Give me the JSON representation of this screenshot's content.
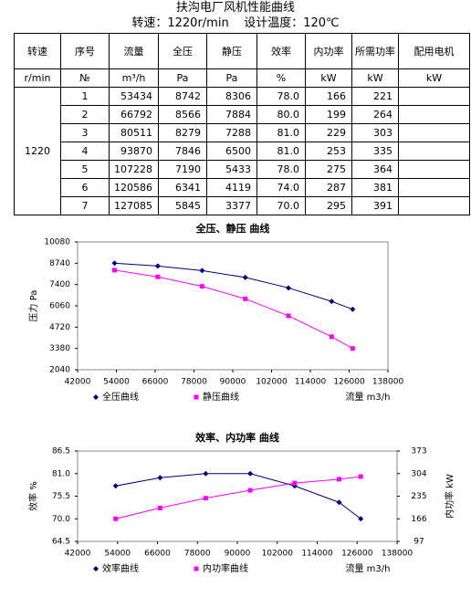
{
  "header": {
    "title": "扶沟电厂风机性能曲线",
    "speed": "转速：1220r/min",
    "temperature": "设计温度：120℃"
  },
  "table": {
    "header": [
      "转速",
      "序号",
      "流量",
      "全压",
      "静压",
      "效率",
      "内功率",
      "所需功率",
      "配用电机"
    ],
    "units": [
      "r/min",
      "№",
      "m³/h",
      "Pa",
      "Pa",
      "%",
      "kW",
      "kW",
      "kW"
    ],
    "speed": "1220",
    "rows": [
      [
        "1",
        "53434",
        "8742",
        "8306",
        "78.0",
        "166",
        "221"
      ],
      [
        "2",
        "66792",
        "8566",
        "7884",
        "80.0",
        "199",
        "264"
      ],
      [
        "3",
        "80511",
        "8279",
        "7288",
        "81.0",
        "229",
        "303"
      ],
      [
        "4",
        "93870",
        "7846",
        "6500",
        "81.0",
        "253",
        "335"
      ],
      [
        "5",
        "107228",
        "7190",
        "5433",
        "78.0",
        "275",
        "364"
      ],
      [
        "6",
        "120586",
        "6341",
        "4119",
        "74.0",
        "287",
        "381"
      ],
      [
        "7",
        "127085",
        "5845",
        "3377",
        "70.0",
        "295",
        "391"
      ]
    ]
  },
  "chart_data": [
    {
      "type": "line",
      "title": "全压、静压 曲线",
      "x_label": "流量 m3/h",
      "y_label": "压力 Pa",
      "x": [
        53434,
        66792,
        80511,
        93870,
        107228,
        120586,
        127085
      ],
      "xlim": [
        42000,
        138000
      ],
      "xticks": [
        42000,
        54000,
        66000,
        78000,
        90000,
        102000,
        114000,
        126000,
        138000
      ],
      "ylim": [
        2040,
        10080
      ],
      "yticks": [
        2040,
        3380,
        4720,
        6060,
        7400,
        8740,
        10080
      ],
      "series": [
        {
          "name": "全压曲线",
          "color": "#000080",
          "marker": "diamond",
          "values": [
            8742,
            8566,
            8279,
            7846,
            7190,
            6341,
            5845
          ]
        },
        {
          "name": "静压曲线",
          "color": "#ff00ff",
          "marker": "square",
          "values": [
            8306,
            7884,
            7288,
            6500,
            5433,
            4119,
            3377
          ]
        }
      ]
    },
    {
      "type": "line",
      "title": "效率、内功率 曲线",
      "x_label": "流量 m3/h",
      "y_label": "效率 %",
      "y2_label": "内功率 kW",
      "x": [
        53434,
        66792,
        80511,
        93870,
        107228,
        120586,
        127085
      ],
      "xlim": [
        42000,
        138000
      ],
      "xticks": [
        42000,
        54000,
        66000,
        78000,
        90000,
        102000,
        114000,
        126000,
        138000
      ],
      "ylim": [
        64.5,
        86.5
      ],
      "yticks": [
        64.5,
        {
          "value": 70,
          "label": "70.0"
        },
        75.5,
        {
          "value": 81,
          "label": "81.0"
        },
        86.5
      ],
      "y2lim": [
        97,
        373
      ],
      "y2ticks": [
        97,
        166,
        235,
        304,
        373
      ],
      "series": [
        {
          "name": "效率曲线",
          "color": "#000080",
          "marker": "diamond",
          "values": [
            78,
            80,
            81,
            81,
            78,
            74,
            70
          ]
        },
        {
          "name": "内功率曲线",
          "color": "#ff00ff",
          "marker": "square",
          "axis": "y2",
          "values": [
            166,
            199,
            229,
            253,
            275,
            287,
            295
          ]
        }
      ]
    }
  ]
}
